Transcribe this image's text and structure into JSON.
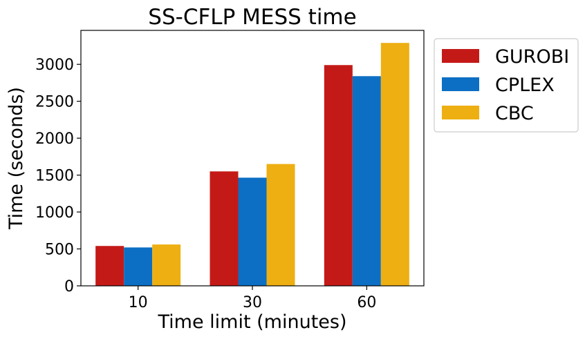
{
  "chart_data": {
    "type": "bar",
    "title": "SS-CFLP MESS time",
    "xlabel": "Time limit (minutes)",
    "ylabel": "Time (seconds)",
    "categories": [
      "10",
      "30",
      "60"
    ],
    "series": [
      {
        "name": "GUROBI",
        "color": "#c41a17",
        "values": [
          540,
          1550,
          2990
        ]
      },
      {
        "name": "CPLEX",
        "color": "#0c6fc4",
        "values": [
          520,
          1465,
          2840
        ]
      },
      {
        "name": "CBC",
        "color": "#eeaf12",
        "values": [
          560,
          1650,
          3290
        ]
      }
    ],
    "ylim": [
      0,
      3460
    ],
    "yticks": [
      0,
      500,
      1000,
      1500,
      2000,
      2500,
      3000
    ],
    "grid": false,
    "legend_position": "outside-right-top"
  }
}
